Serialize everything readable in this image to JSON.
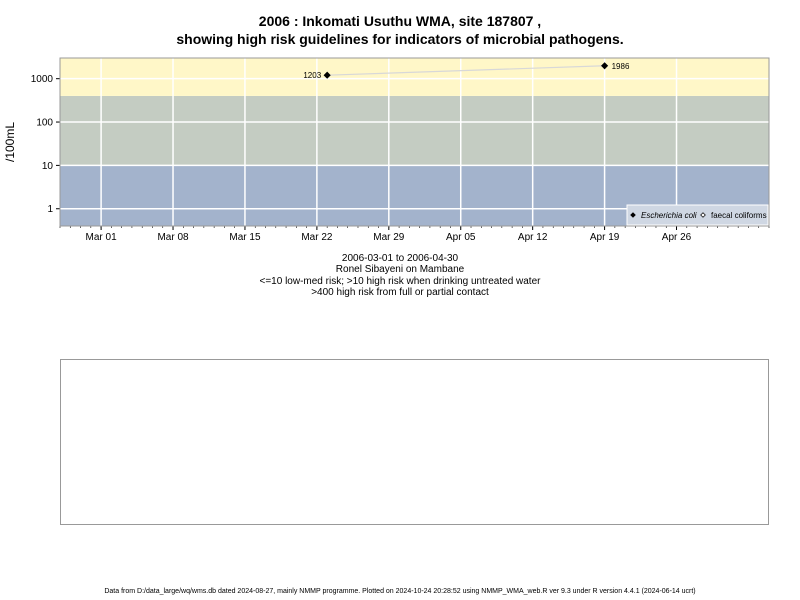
{
  "chart_data": {
    "type": "scatter",
    "title": "2006 : Inkomati Usuthu WMA, site 187807 ,",
    "subtitle": "showing high risk guidelines for indicators of microbial pathogens.",
    "ylabel": "/100mL",
    "xlabel": "",
    "y_scale": "log10",
    "ylim": [
      0.4,
      3000
    ],
    "xlim": [
      "2006-02-25",
      "2006-05-05"
    ],
    "y_ticks": [
      {
        "value": 1,
        "label": "1"
      },
      {
        "value": 10,
        "label": "10"
      },
      {
        "value": 100,
        "label": "100"
      },
      {
        "value": 1000,
        "label": "1000"
      }
    ],
    "x_ticks": [
      {
        "date": "2006-03-01",
        "label": "Mar 01"
      },
      {
        "date": "2006-03-08",
        "label": "Mar 08"
      },
      {
        "date": "2006-03-15",
        "label": "Mar 15"
      },
      {
        "date": "2006-03-22",
        "label": "Mar 22"
      },
      {
        "date": "2006-03-29",
        "label": "Mar 29"
      },
      {
        "date": "2006-04-05",
        "label": "Apr 05"
      },
      {
        "date": "2006-04-12",
        "label": "Apr 12"
      },
      {
        "date": "2006-04-19",
        "label": "Apr 19"
      },
      {
        "date": "2006-04-26",
        "label": "Apr 26"
      }
    ],
    "bands": [
      {
        "from": 0.4,
        "to": 10,
        "color": "#a3b3cc"
      },
      {
        "from": 10,
        "to": 400,
        "color": "#c4ccc2"
      },
      {
        "from": 400,
        "to": 3000,
        "color": "#fff7c8"
      }
    ],
    "grid": true,
    "legend_position": "bottom-right",
    "series": [
      {
        "name": "Escherichia coli",
        "marker": "filled-diamond",
        "color": "#000000",
        "points": [
          {
            "x": "2006-03-23",
            "y": 1203,
            "label": "1203"
          },
          {
            "x": "2006-04-19",
            "y": 1986,
            "label": "1986"
          }
        ]
      },
      {
        "name": "faecal coliforms",
        "marker": "open-diamond",
        "color": "#000000",
        "points": []
      }
    ],
    "connector_color": "#d8d8d8"
  },
  "captions": {
    "line1": "2006-03-01 to 2006-04-30",
    "line2": "Ronel Sibayeni on Mambane",
    "line3": "<=10 low-med risk; >10 high risk when drinking untreated water",
    "line4": ">400 high risk from full or partial contact"
  },
  "footer": "Data from D:/data_large/wq/wms.db dated 2024-08-27, mainly NMMP programme. Plotted on 2024-10-24 20:28:52 using NMMP_WMA_web.R ver 9.3 under R version 4.4.1 (2024-06-14 ucrt)"
}
